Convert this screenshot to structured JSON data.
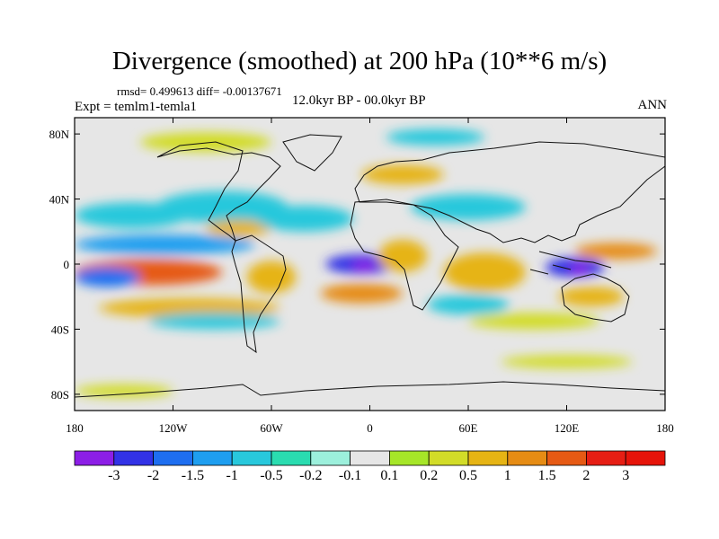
{
  "header": {
    "title": "Divergence (smoothed) at 200 hPa (10**6 m/s)",
    "stats": "rmsd= 0.499613 diff= -0.00137671",
    "experiment": "Expt = temlm1-temla1",
    "period": "12.0kyr BP - 00.0kyr BP",
    "season": "ANN"
  },
  "axes": {
    "lat_labels": [
      "80N",
      "40N",
      "0",
      "40S",
      "80S"
    ],
    "lat_values": [
      80,
      40,
      0,
      -40,
      -80
    ],
    "lon_labels": [
      "180",
      "120W",
      "60W",
      "0",
      "60E",
      "120E",
      "180"
    ],
    "lon_values": [
      -180,
      -120,
      -60,
      0,
      60,
      120,
      180
    ],
    "lat_range": [
      -90,
      90
    ],
    "lon_range": [
      -180,
      180
    ]
  },
  "colorbar": {
    "labels": [
      "-3",
      "-2",
      "-1.5",
      "-1",
      "-0.5",
      "-0.2",
      "-0.1",
      "0.1",
      "0.2",
      "0.5",
      "1",
      "1.5",
      "2",
      "3"
    ],
    "colors": [
      "#8c1ee6",
      "#3232e6",
      "#1e6ef0",
      "#1e9ef0",
      "#28c8dc",
      "#2adcb0",
      "#9cf0dc",
      "#e6e6e6",
      "#a6e628",
      "#d2dc28",
      "#e6b414",
      "#e68c14",
      "#e65a14",
      "#e61e14",
      "#e6140a"
    ]
  },
  "field_regions": [
    {
      "id": "east-pacific-south-max",
      "lon": -135,
      "lat": -5,
      "rx": 45,
      "ry": 8,
      "level": "1.5"
    },
    {
      "id": "east-pacific-north-min",
      "lon": -125,
      "lat": 12,
      "rx": 55,
      "ry": 6,
      "level": "-1"
    },
    {
      "id": "central-pacific-south-min",
      "lon": -160,
      "lat": -8,
      "rx": 20,
      "ry": 6,
      "level": "-1.5"
    },
    {
      "id": "south-pacific-pos-band",
      "lon": -110,
      "lat": -27,
      "rx": 55,
      "ry": 6,
      "level": "0.5"
    },
    {
      "id": "south-pacific-neg-band",
      "lon": -95,
      "lat": -35,
      "rx": 40,
      "ry": 5,
      "level": "-0.5"
    },
    {
      "id": "north-pacific-neg",
      "lon": -145,
      "lat": 30,
      "rx": 35,
      "ry": 8,
      "level": "-0.5"
    },
    {
      "id": "north-america-neg",
      "lon": -90,
      "lat": 35,
      "rx": 40,
      "ry": 10,
      "level": "-0.5"
    },
    {
      "id": "gulf-pos",
      "lon": -80,
      "lat": 22,
      "rx": 20,
      "ry": 5,
      "level": "0.5"
    },
    {
      "id": "north-atlantic-neg",
      "lon": -40,
      "lat": 28,
      "rx": 30,
      "ry": 8,
      "level": "-0.5"
    },
    {
      "id": "atlantic-equator-min",
      "lon": -5,
      "lat": 0,
      "rx": 22,
      "ry": 6,
      "level": "-2"
    },
    {
      "id": "atlantic-equator-core",
      "lon": -3,
      "lat": -1,
      "rx": 8,
      "ry": 3,
      "level": "-3"
    },
    {
      "id": "south-atlantic-pos",
      "lon": -5,
      "lat": -18,
      "rx": 25,
      "ry": 6,
      "level": "1"
    },
    {
      "id": "south-america-pos",
      "lon": -60,
      "lat": -8,
      "rx": 15,
      "ry": 10,
      "level": "0.5"
    },
    {
      "id": "africa-pos",
      "lon": 20,
      "lat": 5,
      "rx": 15,
      "ry": 10,
      "level": "0.5"
    },
    {
      "id": "indian-ocean-pos",
      "lon": 70,
      "lat": -5,
      "rx": 25,
      "ry": 12,
      "level": "0.5"
    },
    {
      "id": "indian-ocean-neg",
      "lon": 60,
      "lat": -25,
      "rx": 25,
      "ry": 6,
      "level": "-0.5"
    },
    {
      "id": "asia-neg",
      "lon": 60,
      "lat": 35,
      "rx": 35,
      "ry": 8,
      "level": "-0.5"
    },
    {
      "id": "maritime-continent-min",
      "lon": 125,
      "lat": -2,
      "rx": 18,
      "ry": 6,
      "level": "-2"
    },
    {
      "id": "maritime-continent-core",
      "lon": 128,
      "lat": -3,
      "rx": 6,
      "ry": 3,
      "level": "-3"
    },
    {
      "id": "west-pacific-pos",
      "lon": 150,
      "lat": 8,
      "rx": 25,
      "ry": 5,
      "level": "1"
    },
    {
      "id": "australia-pos",
      "lon": 135,
      "lat": -20,
      "rx": 20,
      "ry": 6,
      "level": "0.5"
    },
    {
      "id": "south-indian-pos",
      "lon": 100,
      "lat": -35,
      "rx": 40,
      "ry": 5,
      "level": "0.2"
    },
    {
      "id": "arctic-pos",
      "lon": -100,
      "lat": 75,
      "rx": 40,
      "ry": 6,
      "level": "0.2"
    },
    {
      "id": "arctic-neg",
      "lon": 40,
      "lat": 78,
      "rx": 30,
      "ry": 5,
      "level": "-0.5"
    },
    {
      "id": "europe-pos",
      "lon": 20,
      "lat": 55,
      "rx": 25,
      "ry": 6,
      "level": "0.5"
    },
    {
      "id": "antarctic-pos",
      "lon": -150,
      "lat": -78,
      "rx": 30,
      "ry": 4,
      "level": "0.2"
    },
    {
      "id": "southern-ocean-pos",
      "lon": 120,
      "lat": -60,
      "rx": 40,
      "ry": 4,
      "level": "0.2"
    }
  ]
}
